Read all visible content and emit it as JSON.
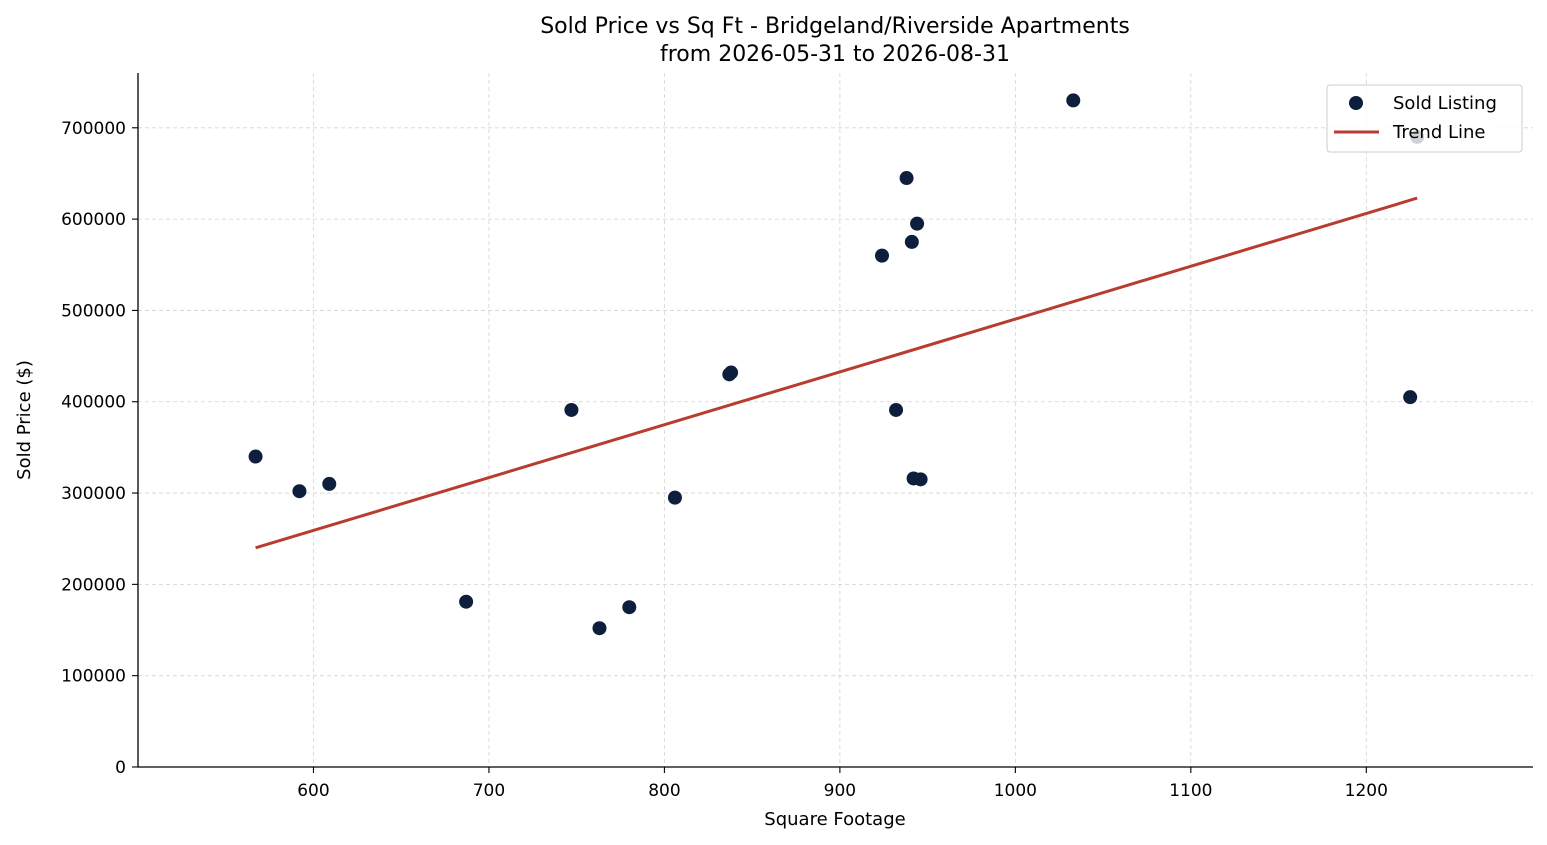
{
  "chart_data": {
    "type": "scatter",
    "title_line1": "Sold Price vs Sq Ft - Bridgeland/Riverside Apartments",
    "title_line2": "from 2026-05-31 to 2026-08-31",
    "xlabel": "Square Footage",
    "ylabel": "Sold Price ($)",
    "xlim": [
      500,
      1295
    ],
    "ylim": [
      0,
      760000
    ],
    "xticks": [
      600,
      700,
      800,
      900,
      1000,
      1100,
      1200
    ],
    "yticks": [
      0,
      100000,
      200000,
      300000,
      400000,
      500000,
      600000,
      700000
    ],
    "grid": true,
    "legend_position": "top-right",
    "series": [
      {
        "name": "Sold Listing",
        "kind": "scatter",
        "color": "#0d1f3c",
        "points": [
          {
            "x": 567,
            "y": 340000
          },
          {
            "x": 592,
            "y": 302000
          },
          {
            "x": 609,
            "y": 310000
          },
          {
            "x": 687,
            "y": 181000
          },
          {
            "x": 747,
            "y": 391000
          },
          {
            "x": 763,
            "y": 152000
          },
          {
            "x": 780,
            "y": 175000
          },
          {
            "x": 806,
            "y": 295000
          },
          {
            "x": 837,
            "y": 430000
          },
          {
            "x": 838,
            "y": 432000
          },
          {
            "x": 924,
            "y": 560000
          },
          {
            "x": 932,
            "y": 391000
          },
          {
            "x": 938,
            "y": 645000
          },
          {
            "x": 941,
            "y": 575000
          },
          {
            "x": 942,
            "y": 316000
          },
          {
            "x": 944,
            "y": 595000
          },
          {
            "x": 946,
            "y": 315000
          },
          {
            "x": 1033,
            "y": 730000
          },
          {
            "x": 1225,
            "y": 405000
          },
          {
            "x": 1229,
            "y": 690000
          }
        ]
      },
      {
        "name": "Trend Line",
        "kind": "line",
        "color": "#b83c2f",
        "points": [
          {
            "x": 567,
            "y": 240000
          },
          {
            "x": 1229,
            "y": 623000
          }
        ]
      }
    ]
  }
}
